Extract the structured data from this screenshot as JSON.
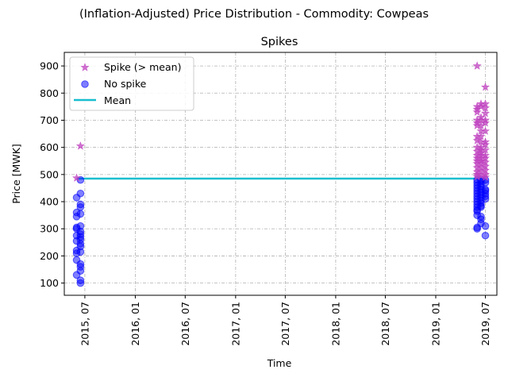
{
  "figure_title": "(Inflation-Adjusted) Price Distribution - Commodity: Cowpeas",
  "chart_data": {
    "type": "scatter",
    "title": "Spikes",
    "xlabel": "Time",
    "ylabel": "Price [MWK]",
    "ylim": [
      55,
      950
    ],
    "yticks": [
      100,
      200,
      300,
      400,
      500,
      600,
      700,
      800,
      900
    ],
    "xlim": [
      "2015-04-17",
      "2019-08-12"
    ],
    "xticks": [
      "2015-07-01",
      "2016-01-01",
      "2016-07-01",
      "2017-01-01",
      "2017-07-01",
      "2018-01-01",
      "2018-07-01",
      "2019-01-01",
      "2019-07-01"
    ],
    "xtick_labels": [
      "2015, 07",
      "2016, 01",
      "2016, 07",
      "2017, 01",
      "2017, 07",
      "2018, 01",
      "2018, 07",
      "2019, 01",
      "2019, 07"
    ],
    "grid": true,
    "legend_position": "top-left",
    "mean": 485,
    "series": [
      {
        "name": "Spike (> mean)",
        "marker": "star",
        "color": "#bf40bf",
        "points": [
          {
            "x": "2015-06-01",
            "ys": [
              487
            ]
          },
          {
            "x": "2015-06-15",
            "ys": [
              605
            ]
          },
          {
            "x": "2019-06-01",
            "ys": [
              900,
              750,
              740,
              730,
              700,
              690,
              680,
              640,
              625,
              600,
              585,
              570,
              560,
              550,
              540,
              525,
              510,
              500,
              492
            ]
          },
          {
            "x": "2019-06-15",
            "ys": [
              760,
              750,
              710,
              700,
              680,
              660,
              640,
              620,
              600,
              590,
              580,
              570,
              560,
              550,
              540,
              525,
              510,
              495
            ]
          },
          {
            "x": "2019-07-01",
            "ys": [
              822,
              760,
              745,
              725,
              700,
              690,
              660,
              620,
              610,
              590,
              570,
              560,
              545,
              530,
              515,
              500,
              490
            ]
          }
        ]
      },
      {
        "name": "No spike",
        "marker": "circle",
        "color": "#0000ff",
        "points": [
          {
            "x": "2015-06-01",
            "ys": [
              415,
              360,
              345,
              305,
              300,
              275,
              255,
              220,
              210,
              185,
              130
            ]
          },
          {
            "x": "2015-06-15",
            "ys": [
              480,
              430,
              390,
              380,
              355,
              310,
              290,
              280,
              270,
              260,
              245,
              235,
              215,
              170,
              160,
              145,
              110,
              100
            ]
          },
          {
            "x": "2019-06-01",
            "ys": [
              480,
              470,
              460,
              450,
              440,
              430,
              420,
              410,
              400,
              390,
              380,
              370,
              365,
              350,
              305,
              300
            ]
          },
          {
            "x": "2019-06-15",
            "ys": [
              482,
              475,
              465,
              455,
              445,
              435,
              425,
              415,
              405,
              395,
              385,
              380,
              345,
              335,
              320
            ]
          },
          {
            "x": "2019-07-01",
            "ys": [
              480,
              470,
              445,
              440,
              430,
              420,
              410,
              310,
              275
            ]
          }
        ]
      }
    ],
    "mean_line": {
      "name": "Mean",
      "color": "#17becf"
    }
  }
}
